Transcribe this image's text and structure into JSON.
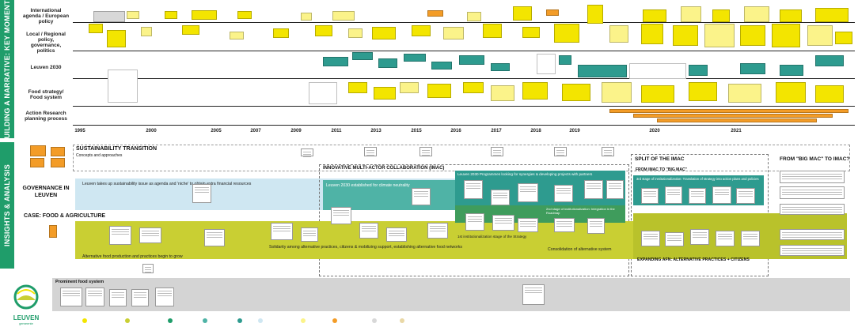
{
  "side_bands": {
    "top": "BUILDING A NARRATIVE: KEY MOMENTS",
    "bottom": "INSIGHTS & ANALYSIS"
  },
  "row_labels": {
    "international": "International agenda / European policy",
    "local": "Local / Regional policy, governance, politics",
    "leuven2030": "Leuven 2030",
    "food_strategy": "Food strategy/ Food system",
    "action_research": "Action Research planning process"
  },
  "years": [
    "1995",
    "2000",
    "2005",
    "2007",
    "2009",
    "2011",
    "2013",
    "2015",
    "2016",
    "2017",
    "2018",
    "2019",
    "2020",
    "2021"
  ],
  "sections": {
    "sustainability_transition": "SUSTAINABILITY TRANSITION",
    "concepts": "Concepts and approaches",
    "governance": "GOVERNANCE IN LEUVEN",
    "case": "CASE: FOOD & AGRICULTURE",
    "imac": "INNOVATIVE MULTI-ACTOR COLLABORATION (IMAC)",
    "split": "SPLIT OF THE IMAC",
    "bigmac_to_imac": "FROM \"BIG MAC\" TO IMAC?",
    "imac_to_bigmac": "FROM IMAC TO \"BIG MAC\"",
    "prominent": "Prominent food system",
    "expanding": "EXPANDING AFN: ALTERNATIVE PRACTICES + CITIZENS"
  },
  "band_texts": {
    "leuven_niche": "Leuven takes up sustainability issue as agenda and 'niche' to obtain extra financial resources",
    "leuven2030_established": "Leuven 2030 established for climate neutrality",
    "programmes": "Leuven 2030 Programmes looking for synergies & developing projects with partners",
    "third_stage": "3rd stage of institutionalization: Translation of strategy into action plans and policies",
    "second_stage": "2nd stage of institutionalization: Integration in the Roadmap",
    "first_stage": "1st institutionalization stage of the Strategy",
    "alt_food": "Alternative food production and practices begin to grow",
    "solidarity": "Solidarity among alternative practices, citizens & mobilizing support, establishing alternative food networks",
    "consolidation": "Consolidation of alternative system"
  },
  "logo": {
    "name": "LEUVEN",
    "sub": "gemeente"
  },
  "colors": {
    "green": "#1f9d6a",
    "yellow": "#f3e500",
    "light_yellow": "#fbf38a",
    "teal": "#2e9b8f",
    "orange": "#f39c27",
    "grey": "#d8d8d8",
    "light_blue": "#cfe7f2",
    "olive": "#c9cf33"
  }
}
